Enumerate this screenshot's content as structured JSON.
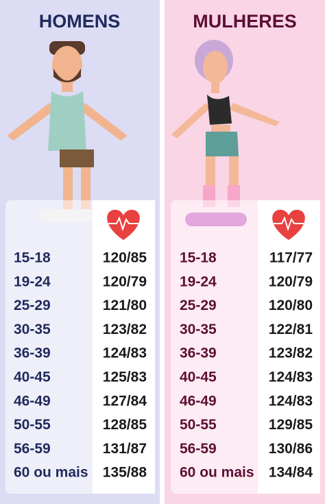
{
  "panels": [
    {
      "title": "HOMENS",
      "rows": [
        [
          "15-18",
          "120/85"
        ],
        [
          "19-24",
          "120/79"
        ],
        [
          "25-29",
          "121/80"
        ],
        [
          "30-35",
          "123/82"
        ],
        [
          "36-39",
          "124/83"
        ],
        [
          "40-45",
          "125/83"
        ],
        [
          "46-49",
          "127/84"
        ],
        [
          "50-55",
          "128/85"
        ],
        [
          "56-59",
          "131/87"
        ],
        [
          "60 ou mais",
          "135/88"
        ]
      ]
    },
    {
      "title": "MULHERES",
      "rows": [
        [
          "15-18",
          "117/77"
        ],
        [
          "19-24",
          "120/79"
        ],
        [
          "25-29",
          "120/80"
        ],
        [
          "30-35",
          "122/81"
        ],
        [
          "36-39",
          "123/82"
        ],
        [
          "40-45",
          "124/83"
        ],
        [
          "46-49",
          "124/83"
        ],
        [
          "50-55",
          "129/85"
        ],
        [
          "56-59",
          "130/86"
        ],
        [
          "60 ou mais",
          "134/84"
        ]
      ]
    }
  ]
}
